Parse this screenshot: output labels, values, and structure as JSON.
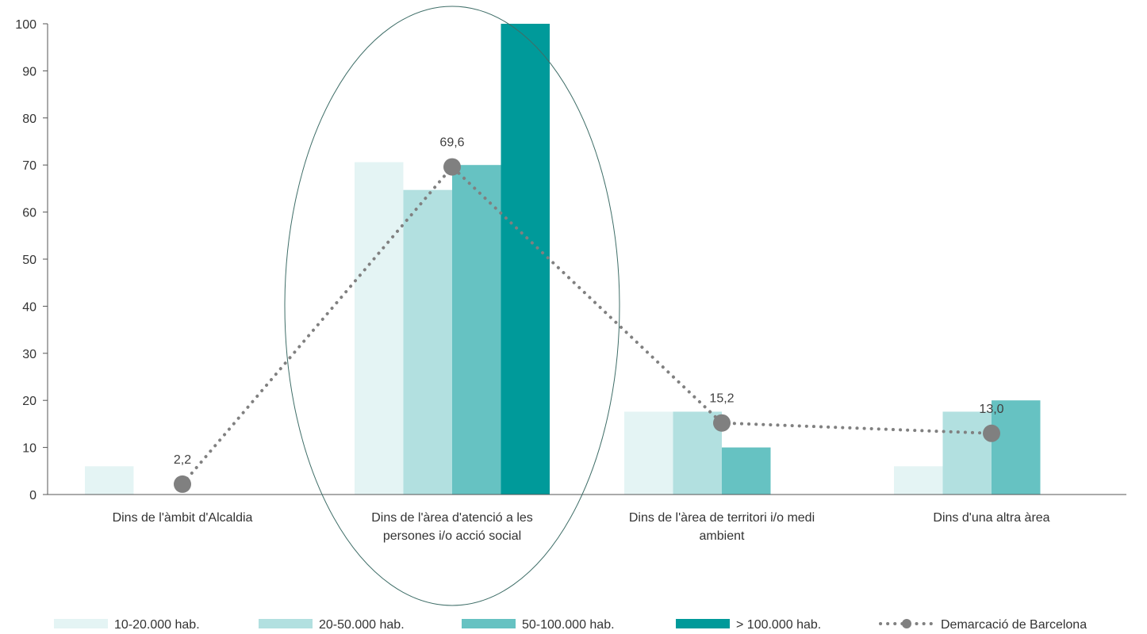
{
  "chart_data": {
    "type": "bar",
    "categories": [
      [
        "Dins de l'àmbit d'Alcaldia"
      ],
      [
        "Dins de l'àrea d'atenció a les",
        "persones i/o acció social"
      ],
      [
        "Dins de l'àrea de territori i/o medi",
        "ambient"
      ],
      [
        "Dins d'una altra àrea"
      ]
    ],
    "ylim": [
      0,
      100
    ],
    "yticks": [
      0,
      10,
      20,
      30,
      40,
      50,
      60,
      70,
      80,
      90,
      100
    ],
    "series": [
      {
        "name": "10-20.000 hab.",
        "color": "#e4f4f4",
        "values": [
          6,
          70.6,
          17.6,
          6
        ]
      },
      {
        "name": "20-50.000 hab.",
        "color": "#b2e0e0",
        "values": [
          0,
          64.7,
          17.6,
          17.6
        ]
      },
      {
        "name": "50-100.000 hab.",
        "color": "#66c2c2",
        "values": [
          0,
          70,
          10,
          20
        ]
      },
      {
        "name": "> 100.000 hab.",
        "color": "#009a9a",
        "values": [
          0,
          100,
          0,
          0
        ]
      }
    ],
    "line": {
      "name": "Demarcació de Barcelona",
      "color": "#808080",
      "values": [
        2.2,
        69.6,
        15.2,
        13.0
      ],
      "labels": [
        "2,2",
        "69,6",
        "15,2",
        "13,0"
      ]
    },
    "highlight": {
      "type": "ellipse",
      "category_index": 1,
      "color": "#3f6e68"
    },
    "legend_position": "bottom",
    "grid": false
  }
}
